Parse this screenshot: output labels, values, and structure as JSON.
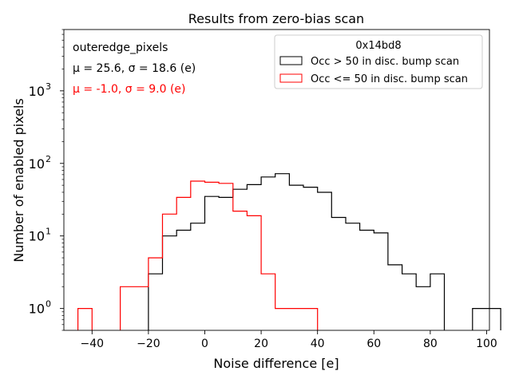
{
  "chart_data": {
    "type": "histogram",
    "title": "Results from zero-bias scan",
    "xlabel": "Noise difference [e]",
    "ylabel": "Number of enabled pixels",
    "yscale": "log",
    "xlim": [
      -50,
      101
    ],
    "ylim": [
      0.5,
      7000
    ],
    "x_ticks": [
      -40,
      -20,
      0,
      20,
      40,
      60,
      80,
      100
    ],
    "x_tick_labels": [
      "−40",
      "−20",
      "0",
      "20",
      "40",
      "60",
      "80",
      "100"
    ],
    "y_major_ticks": [
      1,
      10,
      100,
      1000
    ],
    "annotations": {
      "name": "outeredge_pixels",
      "stats_black": "μ = 25.6, σ = 18.6 (e)",
      "stats_red": "μ = -1.0, σ = 9.0 (e)"
    },
    "legend": {
      "title": "0x14bd8",
      "position": "upper right"
    },
    "series": [
      {
        "name": "Occ > 50 in disc. bump scan",
        "color": "#000000",
        "bins": [
          {
            "start": -20,
            "end": -15,
            "value": 3
          },
          {
            "start": -15,
            "end": -10,
            "value": 10
          },
          {
            "start": -10,
            "end": -5,
            "value": 12
          },
          {
            "start": -5,
            "end": 0,
            "value": 15
          },
          {
            "start": 0,
            "end": 5,
            "value": 35
          },
          {
            "start": 5,
            "end": 10,
            "value": 34
          },
          {
            "start": 10,
            "end": 15,
            "value": 44
          },
          {
            "start": 15,
            "end": 20,
            "value": 51
          },
          {
            "start": 20,
            "end": 25,
            "value": 65
          },
          {
            "start": 25,
            "end": 30,
            "value": 72
          },
          {
            "start": 30,
            "end": 35,
            "value": 50
          },
          {
            "start": 35,
            "end": 40,
            "value": 47
          },
          {
            "start": 40,
            "end": 45,
            "value": 40
          },
          {
            "start": 45,
            "end": 50,
            "value": 18
          },
          {
            "start": 50,
            "end": 55,
            "value": 15
          },
          {
            "start": 55,
            "end": 60,
            "value": 12
          },
          {
            "start": 60,
            "end": 65,
            "value": 11
          },
          {
            "start": 65,
            "end": 70,
            "value": 4
          },
          {
            "start": 70,
            "end": 75,
            "value": 3
          },
          {
            "start": 75,
            "end": 80,
            "value": 2
          },
          {
            "start": 80,
            "end": 85,
            "value": 3
          },
          {
            "start": 85,
            "end": 90,
            "value": 0
          },
          {
            "start": 90,
            "end": 95,
            "value": 0
          },
          {
            "start": 95,
            "end": 100,
            "value": 1
          },
          {
            "start": 100,
            "end": 105,
            "value": 1
          }
        ]
      },
      {
        "name": "Occ <= 50 in disc. bump scan",
        "color": "#ff0000",
        "bins": [
          {
            "start": -45,
            "end": -40,
            "value": 1
          },
          {
            "start": -40,
            "end": -35,
            "value": 0
          },
          {
            "start": -35,
            "end": -30,
            "value": 0
          },
          {
            "start": -30,
            "end": -25,
            "value": 2
          },
          {
            "start": -25,
            "end": -20,
            "value": 2
          },
          {
            "start": -20,
            "end": -15,
            "value": 5
          },
          {
            "start": -15,
            "end": -10,
            "value": 20
          },
          {
            "start": -10,
            "end": -5,
            "value": 34
          },
          {
            "start": -5,
            "end": 0,
            "value": 57
          },
          {
            "start": 0,
            "end": 5,
            "value": 55
          },
          {
            "start": 5,
            "end": 10,
            "value": 53
          },
          {
            "start": 10,
            "end": 15,
            "value": 22
          },
          {
            "start": 15,
            "end": 20,
            "value": 19
          },
          {
            "start": 20,
            "end": 25,
            "value": 3
          },
          {
            "start": 25,
            "end": 30,
            "value": 1
          },
          {
            "start": 30,
            "end": 35,
            "value": 1
          },
          {
            "start": 35,
            "end": 40,
            "value": 1
          }
        ]
      }
    ]
  }
}
